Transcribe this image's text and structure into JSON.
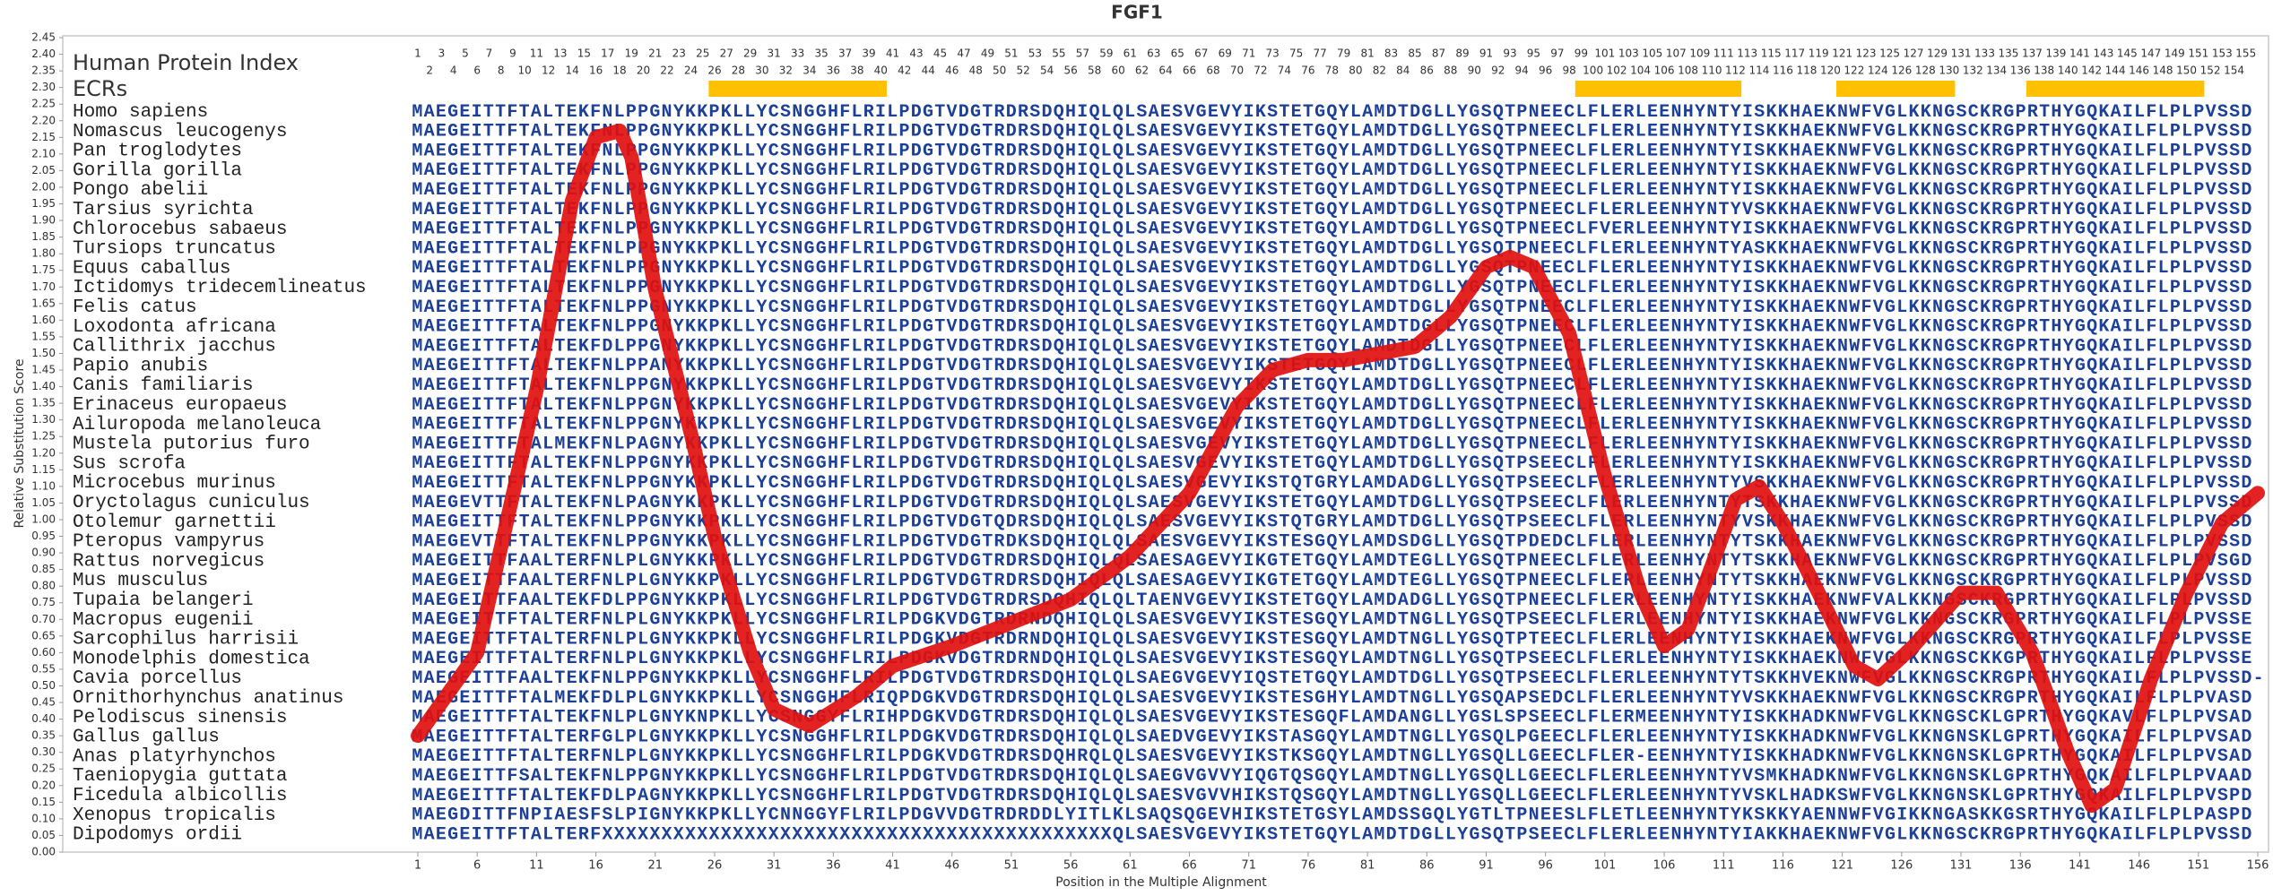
{
  "chart_data": {
    "type": "line",
    "title": "FGF1",
    "x_label": "Position in the Multiple Alignment",
    "y_label": "Relative Substitution Score",
    "index_label": "Human Protein Index",
    "ecr_label": "ECRs",
    "ecr_color": "#ffc000",
    "ecrs": [
      {
        "start": 26,
        "end": 40
      },
      {
        "start": 99,
        "end": 112
      },
      {
        "start": 121,
        "end": 130
      },
      {
        "start": 137,
        "end": 151
      }
    ],
    "index_ticks": [
      1,
      2,
      3,
      4,
      5,
      6,
      7,
      8,
      9,
      10,
      11,
      12,
      13,
      14,
      15,
      16,
      17,
      18,
      19,
      20,
      21,
      22,
      23,
      24,
      25,
      26,
      27,
      28,
      29,
      30,
      31,
      32,
      33,
      34,
      35,
      36,
      37,
      38,
      39,
      40,
      41,
      42,
      43,
      44,
      45,
      46,
      47,
      48,
      49,
      50,
      51,
      52,
      53,
      54,
      55,
      56,
      57,
      58,
      59,
      60,
      61,
      62,
      63,
      64,
      65,
      66,
      67,
      68,
      69,
      70,
      71,
      72,
      73,
      74,
      75,
      76,
      77,
      78,
      79,
      80,
      81,
      82,
      83,
      84,
      85,
      86,
      87,
      88,
      89,
      90,
      91,
      92,
      93,
      94,
      95,
      96,
      97,
      98,
      99,
      100,
      101,
      102,
      103,
      104,
      105,
      106,
      107,
      108,
      109,
      110,
      111,
      112,
      113,
      114,
      115,
      116,
      117,
      118,
      119,
      120,
      121,
      122,
      123,
      124,
      125,
      126,
      127,
      128,
      129,
      130,
      131,
      132,
      133,
      134,
      135,
      136,
      137,
      138,
      139,
      140,
      141,
      142,
      143,
      144,
      145,
      146,
      147,
      148,
      149,
      150,
      151,
      152,
      153,
      154,
      155
    ],
    "rows": [
      {
        "species": "Homo sapiens",
        "sequence": "MAEGEITTFTALTEKFNLPPGNYKKPKLLYCSNGGHFLRILPDGTVDGTRDRSDQHIQLQLSAESVGEVYIKSTETGQYLAMDTDGLLYGSQTPNEECLFLERLEENHYNTYISKKHAEKNWFVGLKKNGSCKRGPRTHYGQKAILFLPLPVSSD"
      },
      {
        "species": "Nomascus leucogenys",
        "sequence": "MAEGEITTFTALTEKFNLPPGNYKKPKLLYCSNGGHFLRILPDGTVDGTRDRSDQHIQLQLSAESVGEVYIKSTETGQYLAMDTDGLLYGSQTPNEECLFLERLEENHYNTYISKKHAEKNWFVGLKKNGSCKRGPRTHYGQKAILFLPLPVSSD"
      },
      {
        "species": "Pan troglodytes",
        "sequence": "MAEGEITTFTALTEKFNLPPGNYKKPKLLYCSNGGHFLRILPDGTVDGTRDRSDQHIQLQLSAESVGEVYIKSTETGQYLAMDTDGLLYGSQTPNEECLFLERLEENHYNTYISKKHAEKNWFVGLKKNGSCKRGPRTHYGQKAILFLPLPVSSD"
      },
      {
        "species": "Gorilla gorilla",
        "sequence": "MAEGEITTFTALTEKFNLPPGNYKKPKLLYCSNGGHFLRILPDGTVDGTRDRSDQHIQLQLSAESVGEVYIKSTETGQYLAMDTDGLLYGSQTPNEECLFLERLEENHYNTYISKKHAEKNWFVGLKKNGSCKRGPRTHYGQKAILFLPLPVSSD"
      },
      {
        "species": "Pongo abelii",
        "sequence": "MAEGEITTFTALTEKFNLPPGNYKKPKLLYCSNGGHFLRILPDGTVDGTRDRSDQHIQLQLSAESVGEVYIKSTETGQYLAMDTDGLLYGSQTPNEECLFLERLEENHYNTYISKKHAEKNWFVGLKKNGSCKRGPRTHYGQKAILFLPLPVSSD"
      },
      {
        "species": "Tarsius syrichta",
        "sequence": "MAEGEITTFTALTEKFNLPPGNYKKPKLLYCSNGGHFLRILPDGTVDGTRDRSDQHIQLQLSAESVGEVYIKSTETGQYLAMDTDGLLYGSQTPNEECLFLERLEENHYNTYVSKKHAEKNWFVGLKKNGSCKRGPRTHYGQKAILFLPLPVSSD"
      },
      {
        "species": "Chlorocebus sabaeus",
        "sequence": "MAEGEITTFTALTEKFNLPPGNYKKPKLLYCSNGGHFLRILPDGTVDGTRDRSDQHIQLQLSAESVGEVYIKSTETGQYLAMDTDGLLYGSQTPNEECLFVERLEENHYNTYISKKHAEKNWFVGLKKNGSCKRGPRTHYGQKAILFLPLPVSSD"
      },
      {
        "species": "Tursiops truncatus",
        "sequence": "MAEGEITTFTALTEKFNLPPGNYKKPKLLYCSNGGHFLRILPDGTVDGTRDRSDQHIQLQLSAESVGEVYIKSTETGQYLAMDTDGLLYGSQTPNEECLFLERLEENHYNTYASKKHAEKNWFVGLKKNGSCKRGPRTHYGQKAILFLPLPVSSD"
      },
      {
        "species": "Equus caballus",
        "sequence": "MAEGEITTFTALTEKFNLPPGNYKKPKLLYCSNGGHFLRILPDGTVDGTRDRSDQHIQLQLSAESVGEVYIKSTETGQYLAMDTDGLLYGSQTPNEECLFLERLEENHYNTYISKKHAEKNWFVGLKKNGSCKRGPRTHYGQKAILFLPLPVSSD"
      },
      {
        "species": "Ictidomys tridecemlineatus",
        "sequence": "MAEGEITTFTALTEKFNLPPGNYKKPKLLYCSNGGHFLRILPDGTVDGTRDRSDQHIQLQLSAESVGEVYIKSTETGQYLAMDTDGLLYGSQTPNEECLFLERLEENHYNTYISKKHAEKNWFVGLKKNGSCKRGPRTHYGQKAILFLPLPVSSD"
      },
      {
        "species": "Felis catus",
        "sequence": "MAEGEITTFTALTEKFNLPPGNYKKPKLLYCSNGGHFLRILPDGTVDGTRDRSDQHIQLQLSAESVGEVYIKSTETGQYLAMDTDGLLYGSQTPNEECLFLERLEENHYNTYISKKHAEKNWFVGLKKNGSCKRGPRTHYGQKAILFLPLPVSSD"
      },
      {
        "species": "Loxodonta africana",
        "sequence": "MAEGEITTFTALTEKFNLPPGNYKKPKLLYCSNGGHFLRILPDGTVDGTRDRSDQHIQLQLSAESVGEVYIKSTETGQYLAMDTDGLLYGSQTPNEECLFLERLEENHYNTYISKKHAEKNWFVGLKKNGSCKRGPRTHYGQKAILFLPLPVSSD"
      },
      {
        "species": "Callithrix jacchus",
        "sequence": "MAEGEITTFTALTEKFDLPPGNYKKPKLLYCSNGGHFLRILPDGTVDGTRDRSDQHIQLQLSAESVGEVYIKSTETGQYLAMDTDGLLYGSQTPNEECLFLERLEENHYNTYISKKHAEKNWFVGLKKNGSCKRGPRTHYGQKAILFLPLPVSSD"
      },
      {
        "species": "Papio anubis",
        "sequence": "MAEGEITTFTALTEKFNLPPANYKKPKLLYCSNGGHFLRILPDGTVDGTRDRSDQHIQLQLSAESVGEVYIKSTETGQYLAMDTDGLLYGSQTPNEECLFLERLEENHYNTYISKKHAEKNWFVGLKKNGSCKRGPRTHYGQKAILFLPLPVSSD"
      },
      {
        "species": "Canis familiaris",
        "sequence": "MAEGEITTFTALTEKFNLPPGNYKKPKLLYCSNGGHFLRILPDGTVDGTRDRSDQHIQLQLSAESVGEVYIKSTETGQYLAMDTDGLLYGSQTPNEECLFLERLEENHYNTYISKKHAEKNWFVGLKKNGSCKRGPRTHYGQKAILFLPLPVSSD"
      },
      {
        "species": "Erinaceus europaeus",
        "sequence": "MAEGEITTFTALTEKFNLPPGNYKKPKLLYCSNGGHFLRILPDGTVDGTRDRSDQHIQLQLSAESVGEVYIKSTETGQYLAMDTDGLLYGSQTPNEECLFLERLEENHYNTYISKKHAEKNWFVGLKKNGSCKRGPRTHYGQKAILFLPLPVSSD"
      },
      {
        "species": "Ailuropoda melanoleuca",
        "sequence": "MAEGEITTFTALTEKFNLPPGNYKKPKLLYCSNGGHFLRILPDGTVDGTRDRSDQHIQLQLSAESVGEVYIKSTETGQYLAMDTDGLLYGSQTPNEECLFLERLEENHYNTYISKKHAEKNWFVGLKKNGSCKRGPRTHYGQKAILFLPLPVSSD"
      },
      {
        "species": "Mustela putorius furo",
        "sequence": "MAEGEITTFTALMEKFNLPAGNYKKPKLLYCSNGGHFLRILPDGTVDGTRDRSDQHIQLQLSAESVGEVYIKSTETGQYLAMDTDGLLYGSQTPNEECLFLERLEENHYNTYISKKHAEKNWFVGLKKNGSCKRGPRTHYGQKAILFLPLPVSSD"
      },
      {
        "species": "Sus scrofa",
        "sequence": "MAEGEITTFTALTEKFNLPPGNYKKPKLLYCSNGGHFLRILPDGTVDGTRDRSDQHIQLQLSAESVGEVYIKSTETGQYLAMDTDGLLYGSQTPSEECLFLERLEENHYNTYISKKHAEKNWFVGLKKNGSCKRGPRTHYGQKAILFLPLPVSSD"
      },
      {
        "species": "Microcebus murinus",
        "sequence": "MAEGEITTFTALTEKFNLPPGNYKKPKLLYCSNGGHFLRILPDGTVDGTRDRSDQHIQLQLSAESVGEVYIKSTQTGRYLAMDADGLLYGSQTPSEECLFLERLEENHYNTYVSKKHAEKNWFVGLKKNGSCKRGPRTHYGQKAILFLPLPVSSD"
      },
      {
        "species": "Oryctolagus cuniculus",
        "sequence": "MAEGEVTTFTALTEKFNLPAGNYKKPKLLYCSNGGHFLRILPDGTVDGTRDRSDQHIQLQLSAESVGEVYIKSTETGQYLAMDTDGLLYGSQTPSEECLFLERLEENHYNTYTSKKHAEKNWFVGLKKNGSCKRGPRTHYGQKAILFLPLPVSSD"
      },
      {
        "species": "Otolemur garnettii",
        "sequence": "MAEGEITTFTALTEKFNLPPGNYKKPKLLYCSNGGHFLRILPDGTVDGTQDRSDQHIQLQLSAESVGEVYIKSTQTGRYLAMDTDGLLYGSQTPSEECLFLERLEENHYNTYVSKKHAEKNWFVGLKKNGSCKRGPRTHYGQKAILFLPLPVSSD"
      },
      {
        "species": "Pteropus vampyrus",
        "sequence": "MAEGEVTTFTALTEKFNLPPGNYKKPKLLYCSNGGHFLRILPDGTVDGTRDKSDQHIQLQLSAESVGEVYIKSTESGQYLAMDSDGLLYGSQTPDEDCLFLERLEENHYNTYTSKKHAEKNWFVGLKKNGSCKRGPRTHYGQKAILFLPLPVSSD"
      },
      {
        "species": "Rattus norvegicus",
        "sequence": "MAEGEITTFAALTERFNLPLGNYKKPKLLYCSNGGHFLRILPDGTVDGTRDRSDQHIQLQLSAESAGEVYIKGTETGQYLAMDTEGLLYGSQTPNEECLFLERLEENHYNTYTSKKHAEKNWFVGLKKNGSCKRGPRTHYGQKAILFLPLPVSGD"
      },
      {
        "species": "Mus musculus",
        "sequence": "MAEGEITTFAALTERFNLPLGNYKKPKLLYCSNGGHFLRILPDGTVDGTRDRSDQHIQLQLSAESAGEVYIKGTETGQYLAMDTEGLLYGSQTPNEECLFLERLEENHYNTYTSKKHAEKNWFVGLKKNGSCKRGPRTHYGQKAILFLPLPVSSD"
      },
      {
        "species": "Tupaia belangeri",
        "sequence": "MAEGEITTFAALTEKFDLPPGNYKKPKLLYCSNGGHFLRILPDGTVDGTRDRSDQHIQLQLTAENVGEVYIKSTETGQYLAMDADGLLYGSQTPNEECLFLERLEENHYNTYISKKHAEKNWFVALKKNGSCKRGPRTHYGQKAILFLPLPVSSD"
      },
      {
        "species": "Macropus eugenii",
        "sequence": "MAEGEITTFTALTERFNLPLGNYKKPKLLYCSNGGHFLRILPDGKVDGTRDRNDQHIQLQLSAESVGEVYIKSTESGQYLAMDTNGLLYGSQTPSEECLFLERLEENHYNTYISKKHAEKNWFVGLKKNGSCKRGPRTHYGQKAILFLPLPVSSE"
      },
      {
        "species": "Sarcophilus harrisii",
        "sequence": "MAEGEITTFTALTERFNLPLGNYKKPKLLYCSNGGHFLRILPDGKVDGTRDRNDQHIQLQLSAESVGEVYIKSTESGQYLAMDTNGLLYGSQTPTEECLFLERLEENHYNTYISKKHAEKNWFVGLKKNGSCKRGPRTHYGQKAILFLPLPVSSE"
      },
      {
        "species": "Monodelphis domestica",
        "sequence": "MAEGEITTFTALTERFNLPLGNYKKPKLLYCSNGGHFLRILPDGKVDGTRDRNDQHIQLQLSAESVGEVYIKSTESGQYLAMDTNGLLYGSQTPSEECLFLERLEENHYNTYISKKHAEKNWFVGLKKNGSCKKGPRTHYGQKAILFLPLPVSSE"
      },
      {
        "species": "Cavia porcellus",
        "sequence": "MAEGEITTFAALTEKFNLPPGNYKKPKLLYCSNGGHFLRILPDGTVDGTRDRSDQHIQLQLSAEGVGEVYIQSTETGQYLAMDTDGLLYGSQTPSEECLFLERLEENHYNTYTSKKHVEKNWFVGLKKNGSCKRGPRTHYGQKAILFLPLPVSSD-"
      },
      {
        "species": "Ornithorhynchus anatinus",
        "sequence": "MAEGEITTFTALMEKFDLPLGNYKKPKLLYCSNGGHFLRIQPDGKVDGTRDRSDQHIQLQLSAESVGEVYIKSTESGHYLAMDTNGLLYGSQAPSEDCLFLERLEENHYNTYVSKKHAEKNWFVGLKKNGSCKRGPRTHYGQKAILFLPLPVASD"
      },
      {
        "species": "Pelodiscus sinensis",
        "sequence": "MAEGEITTFTALTEKFNLPLGNYKNPKLLYCSNGGYFLRIHPDGKVDGTRDRSDQHIQLQLSAESVGEVYIKSTESGQFLAMDANGLLYGSLSPSEECLFLERMEENHYNTYISKKHADKNWFVGLKKNGSCKLGPRTHYGQKAVLFLPLPVSAD"
      },
      {
        "species": "Gallus gallus",
        "sequence": "MAEGEITTFTALTERFGLPLGNYKKPKLLYCSNGGHFLRILPDGKVDGTRDRSDQHIQLQLSAEDVGEVYIKSTASGQYLAMDTNGLLYGSQLPGEECLFLERLEENHYNTYISKKHADKNWFVGLKKNGNSKLGPRTHYGQKAILFLPLPVSAD"
      },
      {
        "species": "Anas platyrhynchos",
        "sequence": "MAEGEITTFTALTERFNLPLGNYKKPKLLYCSNGGHFLRILPDGKVDGTRDRSDQHRQLQLSAESVGEVYIKSTKSGQYLAMDTNGLLYGSQLLGEECLFLER-EENHYNTYISKKHADKNWFVGLKKNGNSKLGPRTHYGQKAILFLPLPVSAD"
      },
      {
        "species": "Taeniopygia guttata",
        "sequence": "MAEGEITTFSALTEKFNLPPGNYKKPKLLYCSNGGHFLRILPDGTVDGTRDRSDQHIQLQLSAEGVGVVYIQGTQSGQYLAMDTNGLLYGSQLLGEECLFLERLEENHYNTYVSMKHADKNWFVGLKKNGNSKLGPRTHYGQKAILFLPLPVAAD"
      },
      {
        "species": "Ficedula albicollis",
        "sequence": "MAEGEITTFTALTEKFDLPAGNYKKPKLLYCSNGGHFLRILPDGTVDGTRDRSDQHIQLQLSAESVGVVHIKSTQSGQYLAMDTNGLLYGSQLLGEECLFLERLEENHYNTYVSKLHADKSWFVGLKKNGNSKLGPRTHYGQKAILFLPLPVSPD"
      },
      {
        "species": "Xenopus tropicalis",
        "sequence": "MAEGDITTFNPIAESFSLPIGNYKKPKLLYCNNGGYFLRILPDGVVDGTRDRDDLYITLKLSAQSQGEVHIKSTETGSYLAMDSSGQLYGTLTPNEESLFLETLEENHYNTYKSKKYAENNWFVGIKKNGASKKGSRTHYGQKAILFLPLPASPD"
      },
      {
        "species": "Dipodomys ordii",
        "sequence": "MAEGEITTFTALTERFXXXXXXXXXXXXXXXXXXXXXXXXXXXXXXXXXXXXXXXXXXXQLSAESVGEVYIKSTETGQYLAMDTDGLLYGSQTPSEECLFLERLEENHYNTYIAKKHAEKNWFVGLKKNGSCKRGPRTHYGQKAILFLPLPVSSD"
      }
    ],
    "x": [
      1,
      6,
      11,
      14,
      16,
      18,
      19,
      21,
      24,
      26,
      29,
      31,
      34,
      38,
      41,
      46,
      51,
      56,
      61,
      66,
      70,
      73,
      76,
      79,
      82,
      85,
      88,
      91,
      93,
      95,
      98,
      101,
      104,
      106,
      108,
      110,
      112,
      114,
      116,
      119,
      122,
      124,
      127,
      131,
      134,
      137,
      140,
      142,
      144,
      147,
      150,
      153,
      156
    ],
    "series": [
      {
        "color": "#e0100f",
        "values": [
          0.35,
          0.6,
          1.39,
          1.96,
          2.15,
          2.17,
          2.09,
          1.69,
          1.26,
          0.95,
          0.6,
          0.43,
          0.38,
          0.47,
          0.56,
          0.62,
          0.69,
          0.76,
          0.89,
          1.08,
          1.34,
          1.45,
          1.48,
          1.48,
          1.5,
          1.52,
          1.61,
          1.76,
          1.79,
          1.76,
          1.56,
          1.13,
          0.78,
          0.62,
          0.67,
          0.86,
          1.06,
          1.1,
          0.99,
          0.78,
          0.56,
          0.52,
          0.62,
          0.78,
          0.78,
          0.6,
          0.3,
          0.14,
          0.19,
          0.52,
          0.78,
          0.99,
          1.08
        ]
      }
    ],
    "xlim": [
      1,
      156
    ],
    "xticks": [
      1,
      6,
      11,
      16,
      21,
      26,
      31,
      36,
      41,
      46,
      51,
      56,
      61,
      66,
      71,
      76,
      81,
      86,
      91,
      96,
      101,
      106,
      111,
      116,
      121,
      126,
      131,
      136,
      141,
      146,
      151,
      156
    ],
    "ylim": [
      0,
      2.45
    ],
    "yticks": [
      {
        "value": 0,
        "label": "0.00"
      },
      {
        "value": 0.05,
        "label": "0.05"
      },
      {
        "value": 0.1,
        "label": "0.10"
      },
      {
        "value": 0.15,
        "label": "0.15"
      },
      {
        "value": 0.2,
        "label": "0.20"
      },
      {
        "value": 0.25,
        "label": "0.25"
      },
      {
        "value": 0.3,
        "label": "0.30"
      },
      {
        "value": 0.35,
        "label": "0.35"
      },
      {
        "value": 0.4,
        "label": "0.40"
      },
      {
        "value": 0.45,
        "label": "0.45"
      },
      {
        "value": 0.5,
        "label": "0.50"
      },
      {
        "value": 0.55,
        "label": "0.55"
      },
      {
        "value": 0.6,
        "label": "0.60"
      },
      {
        "value": 0.65,
        "label": "0.65"
      },
      {
        "value": 0.7,
        "label": "0.70"
      },
      {
        "value": 0.75,
        "label": "0.75"
      },
      {
        "value": 0.8,
        "label": "0.80"
      },
      {
        "value": 0.85,
        "label": "0.85"
      },
      {
        "value": 0.9,
        "label": "0.90"
      },
      {
        "value": 0.95,
        "label": "0.95"
      },
      {
        "value": 1,
        "label": "1.00"
      },
      {
        "value": 1.05,
        "label": "1.05"
      },
      {
        "value": 1.1,
        "label": "1.10"
      },
      {
        "value": 1.15,
        "label": "1.15"
      },
      {
        "value": 1.2,
        "label": "1.20"
      },
      {
        "value": 1.25,
        "label": "1.25"
      },
      {
        "value": 1.3,
        "label": "1.30"
      },
      {
        "value": 1.35,
        "label": "1.35"
      },
      {
        "value": 1.4,
        "label": "1.40"
      },
      {
        "value": 1.45,
        "label": "1.45"
      },
      {
        "value": 1.5,
        "label": "1.50"
      },
      {
        "value": 1.55,
        "label": "1.55"
      },
      {
        "value": 1.6,
        "label": "1.60"
      },
      {
        "value": 1.65,
        "label": "1.65"
      },
      {
        "value": 1.7,
        "label": "1.70"
      },
      {
        "value": 1.75,
        "label": "1.75"
      },
      {
        "value": 1.8,
        "label": "1.80"
      },
      {
        "value": 1.85,
        "label": "1.85"
      },
      {
        "value": 1.9,
        "label": "1.90"
      },
      {
        "value": 1.95,
        "label": "1.95"
      },
      {
        "value": 2,
        "label": "2.00"
      },
      {
        "value": 2.05,
        "label": "2.05"
      },
      {
        "value": 2.1,
        "label": "2.10"
      },
      {
        "value": 2.15,
        "label": "2.15"
      },
      {
        "value": 2.2,
        "label": "2.20"
      },
      {
        "value": 2.25,
        "label": "2.25"
      },
      {
        "value": 2.3,
        "label": "2.30"
      },
      {
        "value": 2.35,
        "label": "2.35"
      },
      {
        "value": 2.4,
        "label": "2.40"
      },
      {
        "value": 2.45,
        "label": "2.45"
      }
    ],
    "grid": false
  }
}
